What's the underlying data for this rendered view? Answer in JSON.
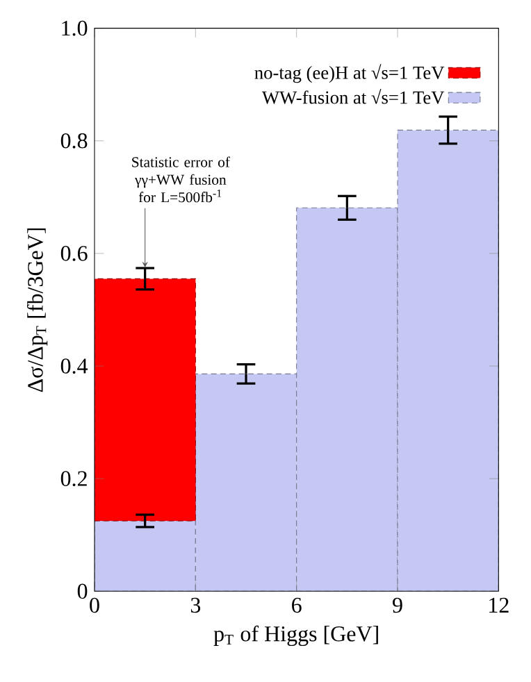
{
  "chart_data": {
    "type": "bar",
    "x": [
      1.5,
      4.5,
      7.5,
      10.5
    ],
    "xlabel": "p$_{T}$ of Higgs [GeV]",
    "ylabel": "Δσ/Δp$_{T}$ [fb/3GeV]",
    "stacked": true,
    "series": [
      {
        "name": "WW-fusion at  √s=1 TeV",
        "color": "#c4c8f2",
        "values": [
          0.125,
          0.386,
          0.681,
          0.819
        ],
        "errors": [
          0.011,
          0.017,
          0.021,
          0.024
        ]
      },
      {
        "name": "no-tag (ee)H at  √s=1 TeV",
        "color": "#ff0000",
        "values": [
          0.43,
          null,
          null,
          null
        ],
        "errors": [
          0.019,
          null,
          null,
          null
        ]
      }
    ],
    "xlim": [
      0,
      12
    ],
    "xticks": [
      0,
      3,
      6,
      9,
      12
    ],
    "ylim": [
      0,
      1
    ],
    "yticks": [
      0,
      0.2,
      0.4,
      0.6,
      0.8,
      {
        "value": 1,
        "label": "1.0"
      }
    ],
    "legend": "top right",
    "annotations": [
      {
        "text": "Statistic error of γγ+WW fusion for L=500fb$^{-1}$",
        "x": 1.5,
        "y": 0.575
      }
    ]
  }
}
